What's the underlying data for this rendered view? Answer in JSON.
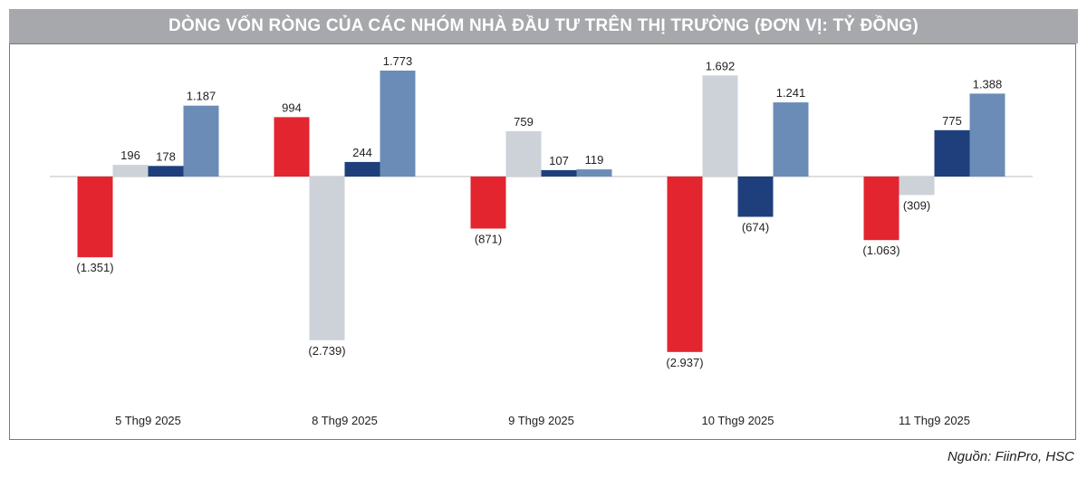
{
  "header": {
    "title": "DÒNG VỐN RÒNG CỦA CÁC NHÓM NHÀ ĐẦU TƯ TRÊN THỊ TRƯỜNG (ĐƠN VỊ: TỶ ĐỒNG)"
  },
  "footer": {
    "source": "Nguồn: FiinPro, HSC"
  },
  "chart_data": {
    "type": "bar",
    "title": "DÒNG VỐN RÒNG CỦA CÁC NHÓM NHÀ ĐẦU TƯ TRÊN THỊ TRƯỜNG (ĐƠN VỊ: TỶ ĐỒNG)",
    "categories": [
      "5 Thg9 2025",
      "8 Thg9 2025",
      "9 Thg9 2025",
      "10 Thg9 2025",
      "11 Thg9 2025"
    ],
    "series": [
      {
        "values": [
          -1351,
          994,
          -871,
          -2937,
          -1063
        ],
        "labels": [
          "(1.351)",
          "994",
          "(871)",
          "(2.937)",
          "(1.063)"
        ],
        "color": "#e2252f"
      },
      {
        "values": [
          196,
          -2739,
          759,
          1692,
          -309
        ],
        "labels": [
          "196",
          "(2.739)",
          "759",
          "1.692",
          "(309)"
        ],
        "color": "#cdd2d9"
      },
      {
        "values": [
          178,
          244,
          107,
          -674,
          775
        ],
        "labels": [
          "178",
          "244",
          "107",
          "(674)",
          "775"
        ],
        "color": "#1f3f7c"
      },
      {
        "values": [
          1187,
          1773,
          119,
          1241,
          1388
        ],
        "labels": [
          "1.187",
          "1.773",
          "119",
          "1.241",
          "1.388"
        ],
        "color": "#6a8cb7"
      }
    ],
    "ylim": [
      -3200,
      2200
    ],
    "grid": false,
    "legend": "none"
  }
}
